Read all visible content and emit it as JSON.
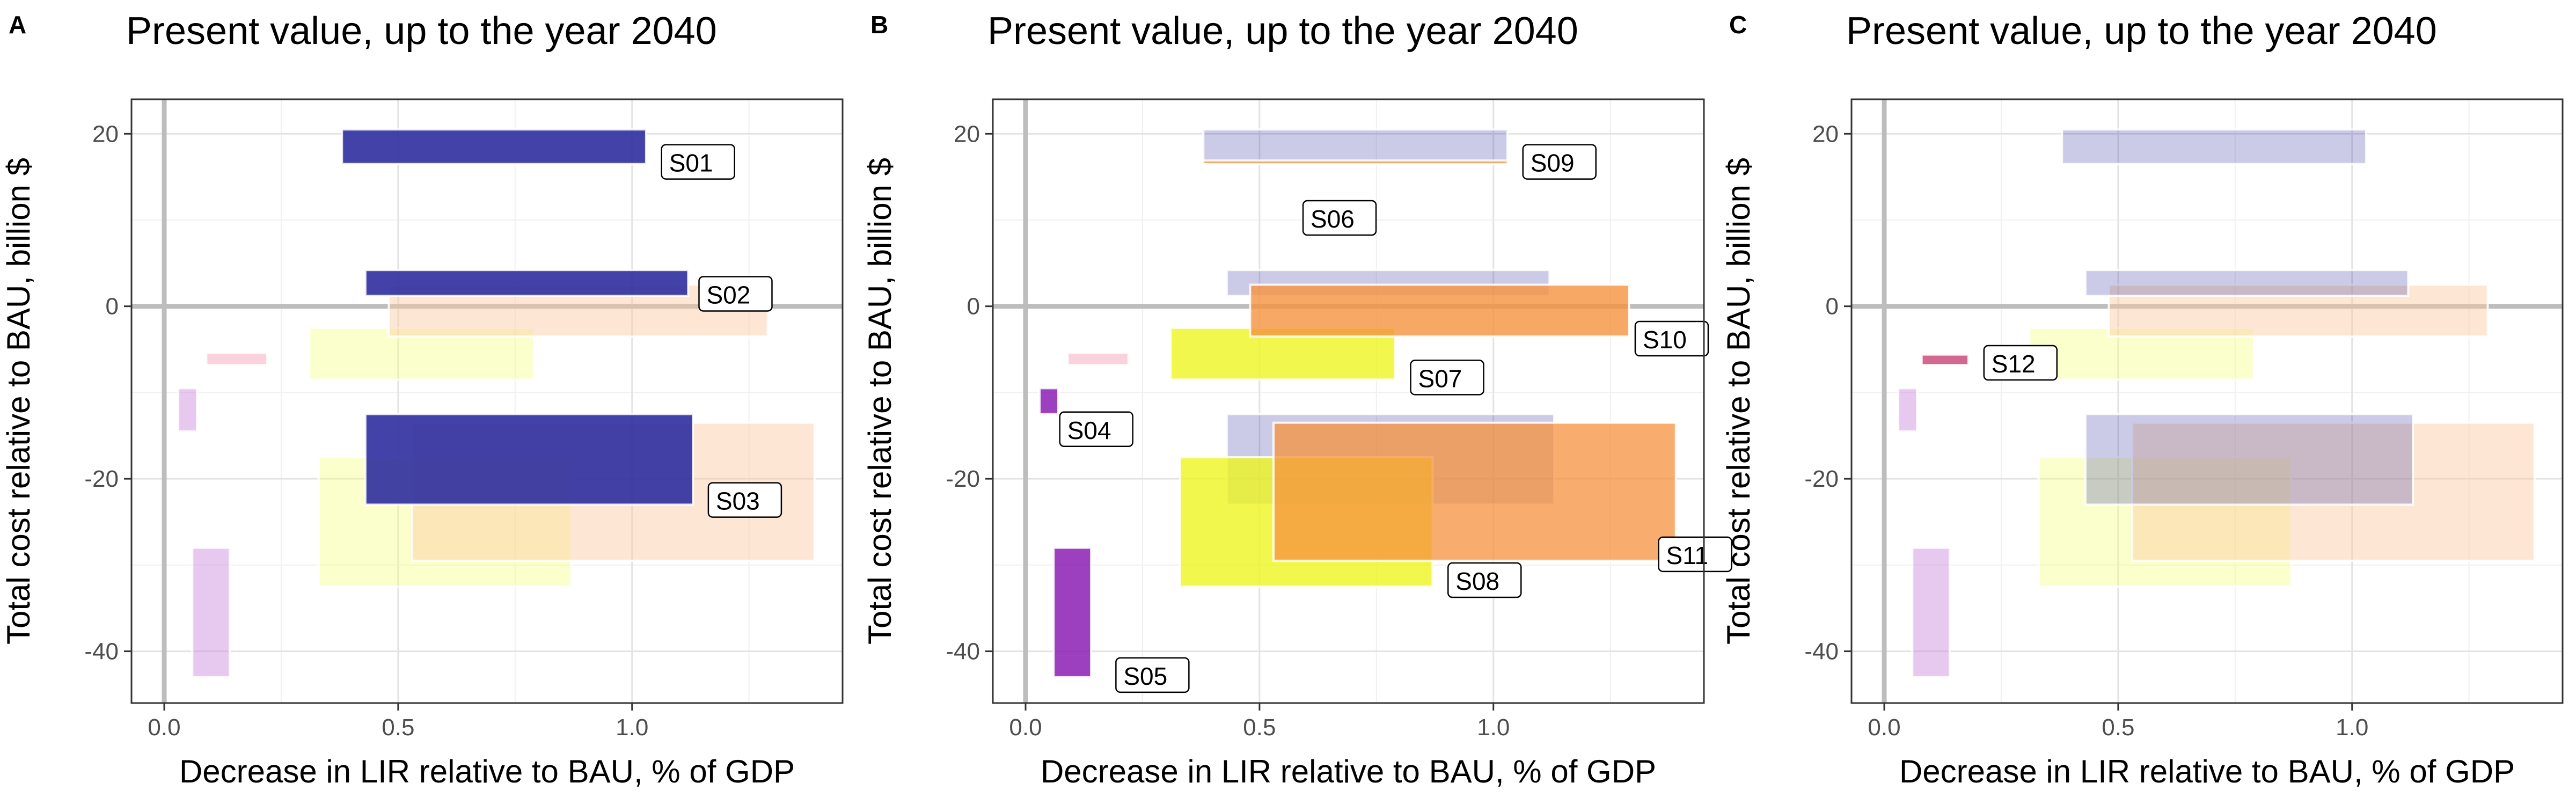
{
  "figure": {
    "panels": [
      "A",
      "B",
      "C"
    ]
  },
  "chart_data": [
    {
      "panel": "A",
      "type": "bar",
      "title": "Present value, up to the year 2040",
      "xlabel": "Decrease in LIR relative to BAU, % of GDP",
      "ylabel": "Total cost relative to BAU, billion $",
      "xlim": [
        -0.07,
        1.45
      ],
      "ylim": [
        -46,
        24
      ],
      "xticks": [
        0.0,
        0.5,
        1.0
      ],
      "xtick_labels": [
        "0.0",
        "0.5",
        "1.0"
      ],
      "yticks": [
        -40,
        -20,
        0,
        20
      ],
      "ytick_labels": [
        "-40",
        "-20",
        "0",
        "20"
      ],
      "grid": true,
      "legend": "none",
      "rects": [
        {
          "x": [
            0.06,
            0.14
          ],
          "y": [
            -43,
            -28
          ],
          "color": "#C987DB",
          "alpha": 0.45
        },
        {
          "x": [
            0.03,
            0.07
          ],
          "y": [
            -14.5,
            -9.5
          ],
          "color": "#C987DB",
          "alpha": 0.45
        },
        {
          "x": [
            0.09,
            0.22
          ],
          "y": [
            -6.8,
            -5.4
          ],
          "color": "#F29BB5",
          "alpha": 0.45
        },
        {
          "x": [
            0.33,
            0.87
          ],
          "y": [
            -32.5,
            -17.5
          ],
          "color": "#F5FF80",
          "alpha": 0.4
        },
        {
          "x": [
            0.31,
            0.79
          ],
          "y": [
            -8.5,
            -2.5
          ],
          "color": "#F5FF80",
          "alpha": 0.4
        },
        {
          "x": [
            0.53,
            1.39
          ],
          "y": [
            -29.5,
            -13.5
          ],
          "color": "#FAC9A0",
          "alpha": 0.45
        },
        {
          "x": [
            0.48,
            1.29
          ],
          "y": [
            -3.5,
            2.5
          ],
          "color": "#FAC9A0",
          "alpha": 0.45
        },
        {
          "x": [
            0.38,
            1.03
          ],
          "y": [
            16.5,
            20.5
          ],
          "color": "#2E2E9E",
          "alpha": 0.9,
          "label": "S01"
        },
        {
          "x": [
            0.43,
            1.12
          ],
          "y": [
            1.2,
            4.2
          ],
          "color": "#2E2E9E",
          "alpha": 0.9,
          "label": "S02"
        },
        {
          "x": [
            0.43,
            1.13
          ],
          "y": [
            -23,
            -12.5
          ],
          "color": "#2E2E9E",
          "alpha": 0.9,
          "label": "S03"
        }
      ],
      "labels": [
        {
          "text": "S01",
          "x": 1.07,
          "y": 16
        },
        {
          "text": "S02",
          "x": 1.15,
          "y": 0.7
        },
        {
          "text": "S03",
          "x": 1.17,
          "y": -23.2
        }
      ]
    },
    {
      "panel": "B",
      "type": "bar",
      "title": "Present value, up to the year 2040",
      "xlabel": "Decrease in LIR relative to BAU, % of GDP",
      "ylabel": "Total cost relative to BAU, billion $",
      "xlim": [
        -0.07,
        1.45
      ],
      "ylim": [
        -46,
        24
      ],
      "xticks": [
        0.0,
        0.5,
        1.0
      ],
      "xtick_labels": [
        "0.0",
        "0.5",
        "1.0"
      ],
      "yticks": [
        -40,
        -20,
        0,
        20
      ],
      "ytick_labels": [
        "-40",
        "-20",
        "0",
        "20"
      ],
      "grid": true,
      "legend": "none",
      "rects": [
        {
          "x": [
            0.09,
            0.22
          ],
          "y": [
            -6.8,
            -5.4
          ],
          "color": "#F29BB5",
          "alpha": 0.45
        },
        {
          "x": [
            0.38,
            1.03
          ],
          "y": [
            16.5,
            20.5
          ],
          "color": "#2E2E9E",
          "alpha": 0.25
        },
        {
          "x": [
            0.43,
            1.12
          ],
          "y": [
            1.2,
            4.2
          ],
          "color": "#2E2E9E",
          "alpha": 0.25
        },
        {
          "x": [
            0.43,
            1.13
          ],
          "y": [
            -23,
            -12.5
          ],
          "color": "#2E2E9E",
          "alpha": 0.25
        },
        {
          "x": [
            0.06,
            0.14
          ],
          "y": [
            -43,
            -28
          ],
          "color": "#8B1FB5",
          "alpha": 0.85,
          "label": "S05"
        },
        {
          "x": [
            0.03,
            0.07
          ],
          "y": [
            -12.5,
            -9.5
          ],
          "color": "#8B1FB5",
          "alpha": 0.85,
          "label": "S04"
        },
        {
          "x": [
            0.38,
            1.03
          ],
          "y": [
            16.5,
            16.9
          ],
          "color": "#F59A45",
          "alpha": 0.9,
          "label": "S09"
        },
        {
          "x": [
            0.31,
            0.79
          ],
          "y": [
            -8.5,
            -2.5
          ],
          "color": "#EEF520",
          "alpha": 0.8,
          "label": "S07"
        },
        {
          "x": [
            0.33,
            0.87
          ],
          "y": [
            -32.5,
            -17.5
          ],
          "color": "#EEF520",
          "alpha": 0.8,
          "label": "S08"
        },
        {
          "x": [
            0.48,
            1.29
          ],
          "y": [
            -3.5,
            2.5
          ],
          "color": "#F5923E",
          "alpha": 0.8,
          "label": "S10"
        },
        {
          "x": [
            0.53,
            1.39
          ],
          "y": [
            -29.5,
            -13.5
          ],
          "color": "#F5923E",
          "alpha": 0.75,
          "label": "S11"
        }
      ],
      "labels": [
        {
          "text": "S09",
          "x": 1.07,
          "y": 16
        },
        {
          "text": "S06",
          "x": 0.6,
          "y": 9.5
        },
        {
          "text": "S10",
          "x": 1.31,
          "y": -4.5
        },
        {
          "text": "S07",
          "x": 0.83,
          "y": -9
        },
        {
          "text": "S04",
          "x": 0.08,
          "y": -15
        },
        {
          "text": "S11",
          "x": 1.36,
          "y": -29.5
        },
        {
          "text": "S08",
          "x": 0.91,
          "y": -32.5
        },
        {
          "text": "S05",
          "x": 0.2,
          "y": -43.5
        }
      ]
    },
    {
      "panel": "C",
      "type": "bar",
      "title": "Present value, up to the year 2040",
      "xlabel": "Decrease in LIR relative to BAU, % of GDP",
      "ylabel": "Total cost relative to BAU, billion $",
      "xlim": [
        -0.07,
        1.45
      ],
      "ylim": [
        -46,
        24
      ],
      "xticks": [
        0.0,
        0.5,
        1.0
      ],
      "xtick_labels": [
        "0.0",
        "0.5",
        "1.0"
      ],
      "yticks": [
        -40,
        -20,
        0,
        20
      ],
      "ytick_labels": [
        "-40",
        "-20",
        "0",
        "20"
      ],
      "grid": true,
      "legend": "none",
      "rects": [
        {
          "x": [
            0.06,
            0.14
          ],
          "y": [
            -43,
            -28
          ],
          "color": "#C987DB",
          "alpha": 0.45
        },
        {
          "x": [
            0.03,
            0.07
          ],
          "y": [
            -14.5,
            -9.5
          ],
          "color": "#C987DB",
          "alpha": 0.45
        },
        {
          "x": [
            0.33,
            0.87
          ],
          "y": [
            -32.5,
            -17.5
          ],
          "color": "#F5FF80",
          "alpha": 0.4
        },
        {
          "x": [
            0.31,
            0.79
          ],
          "y": [
            -8.5,
            -2.5
          ],
          "color": "#F5FF80",
          "alpha": 0.4
        },
        {
          "x": [
            0.53,
            1.39
          ],
          "y": [
            -29.5,
            -13.5
          ],
          "color": "#FAC9A0",
          "alpha": 0.45
        },
        {
          "x": [
            0.48,
            1.29
          ],
          "y": [
            -3.5,
            2.5
          ],
          "color": "#FAC9A0",
          "alpha": 0.45
        },
        {
          "x": [
            0.38,
            1.03
          ],
          "y": [
            16.5,
            20.5
          ],
          "color": "#2E2E9E",
          "alpha": 0.25
        },
        {
          "x": [
            0.43,
            1.12
          ],
          "y": [
            1.2,
            4.2
          ],
          "color": "#2E2E9E",
          "alpha": 0.25
        },
        {
          "x": [
            0.43,
            1.13
          ],
          "y": [
            -23,
            -12.5
          ],
          "color": "#2E2E9E",
          "alpha": 0.25
        },
        {
          "x": [
            0.08,
            0.18
          ],
          "y": [
            -6.8,
            -5.6
          ],
          "color": "#D0608A",
          "alpha": 0.95,
          "label": "S12"
        }
      ],
      "labels": [
        {
          "text": "S12",
          "x": 0.22,
          "y": -7.3
        }
      ]
    }
  ]
}
